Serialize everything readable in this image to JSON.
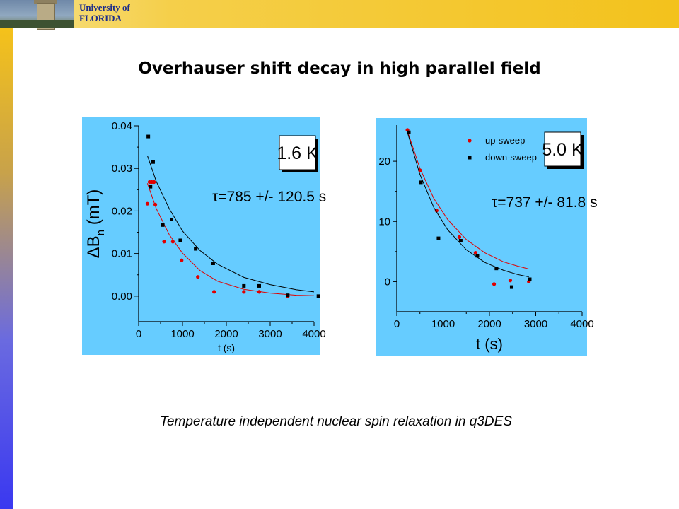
{
  "header": {
    "university_line1": "University of",
    "university_line2": "FLORIDA"
  },
  "title": "Overhauser shift decay in high parallel field",
  "caption": "Temperature independent nuclear spin relaxation in q3DES",
  "colors": {
    "panel_bg": "#66ccff",
    "red_series": "#e00000",
    "black_series": "#000000",
    "title_text": "#000000",
    "univ_text": "#1d2d8a"
  },
  "chart_data": [
    {
      "type": "scatter",
      "ylabel_main": "ΔB",
      "ylabel_sub": "n",
      "ylabel_unit": " (mT)",
      "xlabel": "t (s)",
      "xlim": [
        0,
        4000
      ],
      "ylim": [
        -0.006,
        0.04
      ],
      "xticks": [
        0,
        1000,
        2000,
        3000,
        4000
      ],
      "yticks": [
        0.0,
        0.01,
        0.02,
        0.03,
        0.04
      ],
      "ytick_labels": [
        "0.00",
        "0.01",
        "0.02",
        "0.03",
        "0.04"
      ],
      "temperature_label": "1.6 K",
      "tau_label": "τ=785 +/- 120.5 s",
      "series": [
        {
          "color": "red",
          "points": [
            [
              200,
              0.0217
            ],
            [
              250,
              0.0268
            ],
            [
              300,
              0.0268
            ],
            [
              350,
              0.0268
            ],
            [
              380,
              0.0215
            ],
            [
              580,
              0.0128
            ],
            [
              780,
              0.0128
            ],
            [
              980,
              0.0084
            ],
            [
              1350,
              0.0045
            ],
            [
              1720,
              0.001
            ],
            [
              2400,
              0.001
            ],
            [
              2750,
              0.001
            ],
            [
              3400,
              0.0
            ]
          ],
          "fit": [
            [
              200,
              0.0265
            ],
            [
              400,
              0.0206
            ],
            [
              700,
              0.0144
            ],
            [
              1000,
              0.0101
            ],
            [
              1400,
              0.006
            ],
            [
              1800,
              0.0035
            ],
            [
              2400,
              0.0016
            ],
            [
              3000,
              0.0007
            ],
            [
              3600,
              0.0002
            ],
            [
              4000,
              0.0001
            ]
          ]
        },
        {
          "color": "black",
          "points": [
            [
              220,
              0.0375
            ],
            [
              270,
              0.0257
            ],
            [
              330,
              0.0315
            ],
            [
              550,
              0.0167
            ],
            [
              750,
              0.018
            ],
            [
              950,
              0.0131
            ],
            [
              1300,
              0.0111
            ],
            [
              1700,
              0.0077
            ],
            [
              2400,
              0.0024
            ],
            [
              2750,
              0.0024
            ],
            [
              3400,
              0.0002
            ],
            [
              4100,
              0.0
            ]
          ],
          "fit": [
            [
              200,
              0.033
            ],
            [
              400,
              0.027
            ],
            [
              700,
              0.0205
            ],
            [
              1000,
              0.0153
            ],
            [
              1400,
              0.0107
            ],
            [
              1800,
              0.0075
            ],
            [
              2400,
              0.0044
            ],
            [
              3000,
              0.0027
            ],
            [
              3600,
              0.0015
            ],
            [
              4000,
              0.001
            ]
          ]
        }
      ]
    },
    {
      "type": "scatter",
      "ylabel": "",
      "xlabel": "t (s)",
      "xlim": [
        0,
        4000
      ],
      "ylim": [
        -5,
        26
      ],
      "xticks": [
        0,
        1000,
        2000,
        3000,
        4000
      ],
      "yticks": [
        0,
        10,
        20
      ],
      "temperature_label": "5.0 K",
      "tau_label": "τ=737 +/- 81.8 s",
      "legend": {
        "position": "top",
        "entries": [
          {
            "label": "up-sweep",
            "color": "red"
          },
          {
            "label": "down-sweep",
            "color": "black"
          }
        ]
      },
      "series": [
        {
          "name": "up-sweep",
          "color": "red",
          "points": [
            [
              230,
              25.2
            ],
            [
              500,
              18.5
            ],
            [
              860,
              11.8
            ],
            [
              1350,
              7.4
            ],
            [
              1700,
              4.8
            ],
            [
              2100,
              -0.4
            ],
            [
              2450,
              0.2
            ],
            [
              2850,
              0.0
            ]
          ],
          "fit": [
            [
              230,
              25.0
            ],
            [
              500,
              18.8
            ],
            [
              800,
              13.8
            ],
            [
              1100,
              10.3
            ],
            [
              1500,
              7.0
            ],
            [
              1900,
              4.8
            ],
            [
              2300,
              3.3
            ],
            [
              2600,
              2.6
            ],
            [
              2850,
              2.1
            ]
          ]
        },
        {
          "name": "down-sweep",
          "color": "black",
          "points": [
            [
              260,
              24.8
            ],
            [
              520,
              16.5
            ],
            [
              900,
              7.2
            ],
            [
              1380,
              6.8
            ],
            [
              1740,
              4.3
            ],
            [
              2150,
              2.2
            ],
            [
              2480,
              -0.9
            ],
            [
              2870,
              0.4
            ]
          ],
          "fit": [
            [
              230,
              24.8
            ],
            [
              500,
              17.8
            ],
            [
              800,
              12.3
            ],
            [
              1100,
              8.6
            ],
            [
              1500,
              5.3
            ],
            [
              1900,
              3.2
            ],
            [
              2300,
              1.9
            ],
            [
              2600,
              1.2
            ],
            [
              2850,
              0.8
            ]
          ]
        }
      ]
    }
  ]
}
